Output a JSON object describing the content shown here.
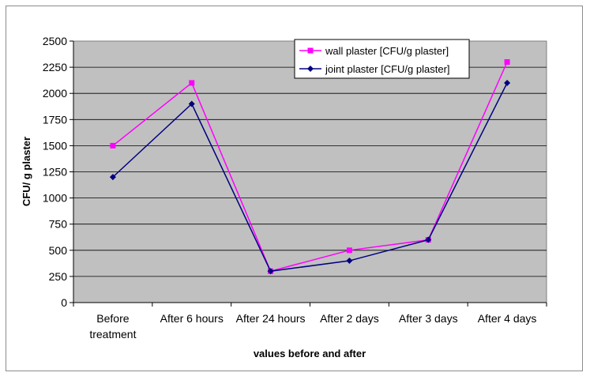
{
  "chart_data": {
    "type": "line",
    "categories": [
      [
        "Before",
        "treatment"
      ],
      [
        "After 6 hours"
      ],
      [
        "After 24 hours"
      ],
      [
        "After 2 days"
      ],
      [
        "After 3 days"
      ],
      [
        "After 4 days"
      ]
    ],
    "series": [
      {
        "name": "wall plaster [CFU/g plaster]",
        "values": [
          1500,
          2100,
          300,
          500,
          600,
          2300
        ],
        "color": "#ff00ff",
        "marker": "square"
      },
      {
        "name": "joint plaster  [CFU/g plaster]",
        "values": [
          1200,
          1900,
          300,
          400,
          600,
          2100
        ],
        "color": "#000080",
        "marker": "diamond"
      }
    ],
    "yticks": [
      "0",
      "250",
      "500",
      "750",
      "1000",
      "1250",
      "1500",
      "1750",
      "2000",
      "2250",
      "2500"
    ],
    "ylim": [
      0,
      2500
    ],
    "xlabel": "values before and after",
    "ylabel": "CFU/ g plaster",
    "grid": true,
    "plot_background": "#c0c0c0",
    "legend_position": "top-right"
  }
}
